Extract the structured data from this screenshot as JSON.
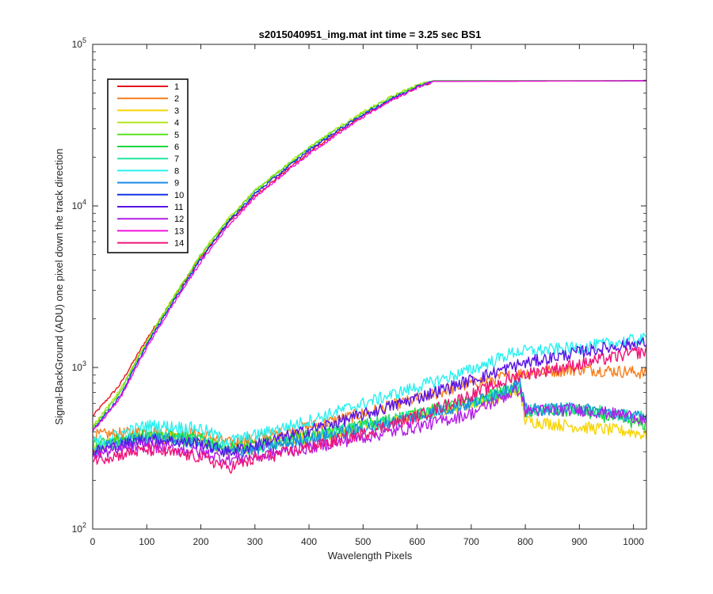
{
  "chart_data": {
    "type": "line",
    "title": "s2015040951_img.mat int time = 3.25 sec   BS1",
    "xlabel": "Wavelength Pixels",
    "ylabel": "Signal-BackGround (ADU) one pixel down the track direction",
    "xlim": [
      0,
      1024
    ],
    "ylim": [
      100,
      100000
    ],
    "yscale": "log",
    "xticks": [
      0,
      100,
      200,
      300,
      400,
      500,
      600,
      700,
      800,
      900,
      1000
    ],
    "yticks": [
      {
        "value": 100,
        "base": "10",
        "exp": "2"
      },
      {
        "value": 1000,
        "base": "10",
        "exp": "3"
      },
      {
        "value": 10000,
        "base": "10",
        "exp": "4"
      },
      {
        "value": 100000,
        "base": "10",
        "exp": "5"
      }
    ],
    "legend_position": "top-left",
    "grid": false,
    "series": [
      {
        "name": "1",
        "color": "#e8141e",
        "points": [
          [
            0,
            500
          ],
          [
            50,
            780
          ],
          [
            100,
            1500
          ],
          [
            150,
            2700
          ],
          [
            200,
            4800
          ],
          [
            250,
            7800
          ],
          [
            300,
            11500
          ],
          [
            350,
            15800
          ],
          [
            400,
            21500
          ],
          [
            450,
            28000
          ],
          [
            500,
            36000
          ],
          [
            550,
            45000
          ],
          [
            600,
            54000
          ],
          [
            630,
            59000
          ],
          [
            1024,
            59500
          ]
        ]
      },
      {
        "name": "2",
        "color": "#f77e1b",
        "points": [
          [
            0,
            380
          ],
          [
            100,
            400
          ],
          [
            200,
            390
          ],
          [
            250,
            340
          ],
          [
            300,
            360
          ],
          [
            400,
            430
          ],
          [
            500,
            520
          ],
          [
            600,
            640
          ],
          [
            700,
            800
          ],
          [
            800,
            930
          ],
          [
            900,
            980
          ],
          [
            1000,
            940
          ],
          [
            1024,
            920
          ]
        ]
      },
      {
        "name": "3",
        "color": "#f7d400",
        "points": [
          [
            0,
            320
          ],
          [
            100,
            380
          ],
          [
            200,
            350
          ],
          [
            250,
            310
          ],
          [
            300,
            320
          ],
          [
            400,
            370
          ],
          [
            500,
            430
          ],
          [
            600,
            510
          ],
          [
            700,
            600
          ],
          [
            790,
            720
          ],
          [
            800,
            470
          ],
          [
            900,
            430
          ],
          [
            1000,
            400
          ],
          [
            1024,
            380
          ]
        ]
      },
      {
        "name": "4",
        "color": "#b3e61c",
        "points": [
          [
            0,
            430
          ],
          [
            50,
            720
          ],
          [
            100,
            1450
          ],
          [
            150,
            2750
          ],
          [
            200,
            5000
          ],
          [
            250,
            8300
          ],
          [
            300,
            12500
          ],
          [
            350,
            17000
          ],
          [
            400,
            23000
          ],
          [
            450,
            30000
          ],
          [
            500,
            38000
          ],
          [
            550,
            47000
          ],
          [
            600,
            56000
          ],
          [
            630,
            59500
          ],
          [
            1024,
            59500
          ]
        ]
      },
      {
        "name": "5",
        "color": "#5ae11e",
        "points": [
          [
            0,
            420
          ],
          [
            50,
            700
          ],
          [
            100,
            1420
          ],
          [
            150,
            2700
          ],
          [
            200,
            4950
          ],
          [
            250,
            8200
          ],
          [
            300,
            12300
          ],
          [
            350,
            16800
          ],
          [
            400,
            22800
          ],
          [
            450,
            29500
          ],
          [
            500,
            37500
          ],
          [
            550,
            46500
          ],
          [
            600,
            55500
          ],
          [
            630,
            59500
          ],
          [
            1024,
            59500
          ]
        ]
      },
      {
        "name": "6",
        "color": "#14d83c",
        "points": [
          [
            0,
            330
          ],
          [
            100,
            390
          ],
          [
            200,
            360
          ],
          [
            250,
            320
          ],
          [
            300,
            330
          ],
          [
            400,
            380
          ],
          [
            500,
            440
          ],
          [
            600,
            520
          ],
          [
            700,
            620
          ],
          [
            790,
            760
          ],
          [
            800,
            540
          ],
          [
            900,
            540
          ],
          [
            1000,
            460
          ],
          [
            1024,
            440
          ]
        ]
      },
      {
        "name": "7",
        "color": "#21e6a0",
        "points": [
          [
            0,
            310
          ],
          [
            100,
            380
          ],
          [
            200,
            350
          ],
          [
            250,
            310
          ],
          [
            300,
            320
          ],
          [
            400,
            370
          ],
          [
            500,
            430
          ],
          [
            600,
            510
          ],
          [
            700,
            610
          ],
          [
            790,
            780
          ],
          [
            800,
            540
          ],
          [
            900,
            560
          ],
          [
            1000,
            500
          ],
          [
            1024,
            490
          ]
        ]
      },
      {
        "name": "8",
        "color": "#28f0f0",
        "points": [
          [
            0,
            340
          ],
          [
            100,
            440
          ],
          [
            200,
            420
          ],
          [
            250,
            350
          ],
          [
            300,
            380
          ],
          [
            400,
            470
          ],
          [
            500,
            600
          ],
          [
            600,
            760
          ],
          [
            700,
            970
          ],
          [
            780,
            1250
          ],
          [
            900,
            1330
          ],
          [
            1000,
            1480
          ],
          [
            1024,
            1500
          ]
        ]
      },
      {
        "name": "9",
        "color": "#1e8be6",
        "points": [
          [
            0,
            310
          ],
          [
            100,
            370
          ],
          [
            200,
            340
          ],
          [
            250,
            300
          ],
          [
            300,
            310
          ],
          [
            400,
            360
          ],
          [
            500,
            420
          ],
          [
            600,
            500
          ],
          [
            700,
            600
          ],
          [
            790,
            800
          ],
          [
            800,
            550
          ],
          [
            900,
            560
          ],
          [
            1000,
            500
          ],
          [
            1024,
            480
          ]
        ]
      },
      {
        "name": "10",
        "color": "#1432e6",
        "points": [
          [
            0,
            410
          ],
          [
            50,
            660
          ],
          [
            100,
            1380
          ],
          [
            150,
            2600
          ],
          [
            200,
            4700
          ],
          [
            250,
            7900
          ],
          [
            300,
            11900
          ],
          [
            350,
            16300
          ],
          [
            400,
            22200
          ],
          [
            450,
            28800
          ],
          [
            500,
            36800
          ],
          [
            550,
            45600
          ],
          [
            600,
            54800
          ],
          [
            630,
            59200
          ],
          [
            1024,
            59500
          ]
        ]
      },
      {
        "name": "11",
        "color": "#5a14e6",
        "points": [
          [
            0,
            300
          ],
          [
            100,
            360
          ],
          [
            200,
            340
          ],
          [
            250,
            300
          ],
          [
            300,
            330
          ],
          [
            400,
            410
          ],
          [
            500,
            510
          ],
          [
            600,
            650
          ],
          [
            700,
            840
          ],
          [
            790,
            1050
          ],
          [
            900,
            1250
          ],
          [
            1000,
            1400
          ],
          [
            1024,
            1420
          ]
        ]
      },
      {
        "name": "12",
        "color": "#b41ee6",
        "points": [
          [
            0,
            290
          ],
          [
            100,
            330
          ],
          [
            200,
            300
          ],
          [
            250,
            270
          ],
          [
            300,
            280
          ],
          [
            400,
            320
          ],
          [
            500,
            370
          ],
          [
            600,
            430
          ],
          [
            700,
            520
          ],
          [
            790,
            740
          ],
          [
            800,
            540
          ],
          [
            900,
            550
          ],
          [
            1000,
            500
          ],
          [
            1024,
            470
          ]
        ]
      },
      {
        "name": "13",
        "color": "#f014dc",
        "points": [
          [
            0,
            400
          ],
          [
            50,
            640
          ],
          [
            100,
            1330
          ],
          [
            150,
            2500
          ],
          [
            200,
            4500
          ],
          [
            250,
            7500
          ],
          [
            300,
            11300
          ],
          [
            350,
            15500
          ],
          [
            400,
            21000
          ],
          [
            450,
            27500
          ],
          [
            500,
            35500
          ],
          [
            550,
            44500
          ],
          [
            600,
            54000
          ],
          [
            630,
            59000
          ],
          [
            1024,
            59500
          ]
        ]
      },
      {
        "name": "14",
        "color": "#f01478",
        "points": [
          [
            0,
            270
          ],
          [
            100,
            310
          ],
          [
            200,
            280
          ],
          [
            250,
            240
          ],
          [
            300,
            270
          ],
          [
            400,
            320
          ],
          [
            500,
            390
          ],
          [
            600,
            500
          ],
          [
            700,
            680
          ],
          [
            790,
            900
          ],
          [
            900,
            1050
          ],
          [
            1000,
            1230
          ],
          [
            1024,
            1260
          ]
        ]
      }
    ]
  }
}
